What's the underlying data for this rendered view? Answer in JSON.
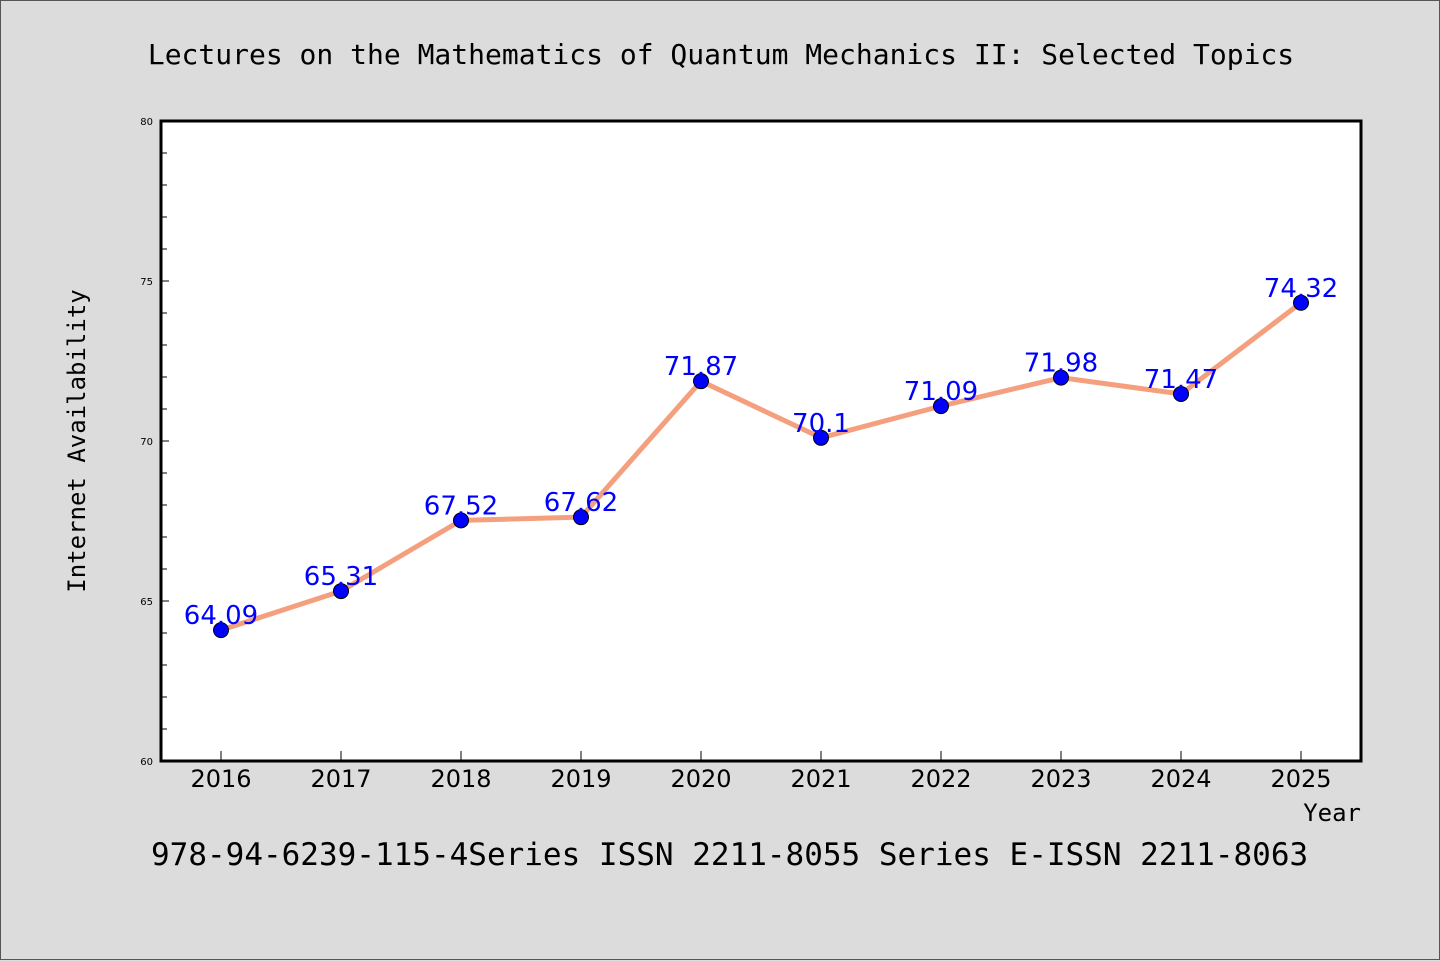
{
  "chart_data": {
    "type": "line",
    "title": "Lectures on the Mathematics of Quantum Mechanics II: Selected Topics",
    "xlabel": "Year",
    "ylabel": "Internet Availability",
    "footer": "978-94-6239-115-4Series ISSN 2211-8055 Series E-ISSN 2211-8063",
    "categories": [
      "2016",
      "2017",
      "2018",
      "2019",
      "2020",
      "2021",
      "2022",
      "2023",
      "2024",
      "2025"
    ],
    "series": [
      {
        "values": [
          64.09,
          65.31,
          67.52,
          67.62,
          71.87,
          70.1,
          71.09,
          71.98,
          71.47,
          74.32
        ],
        "labels": [
          "64.09",
          "65.31",
          "67.52",
          "67.62",
          "71.87",
          "70.1",
          "71.09",
          "71.98",
          "71.47",
          "74.32"
        ]
      }
    ],
    "ylim": [
      60,
      80
    ],
    "yticks": [
      "60",
      "65",
      "70",
      "75",
      "80"
    ],
    "grid": false,
    "colors": {
      "line": "#f4a07e",
      "marker": "#0000ff",
      "label": "#0000ff",
      "background": "#dcdcdc",
      "plot_bg": "#ffffff"
    }
  }
}
